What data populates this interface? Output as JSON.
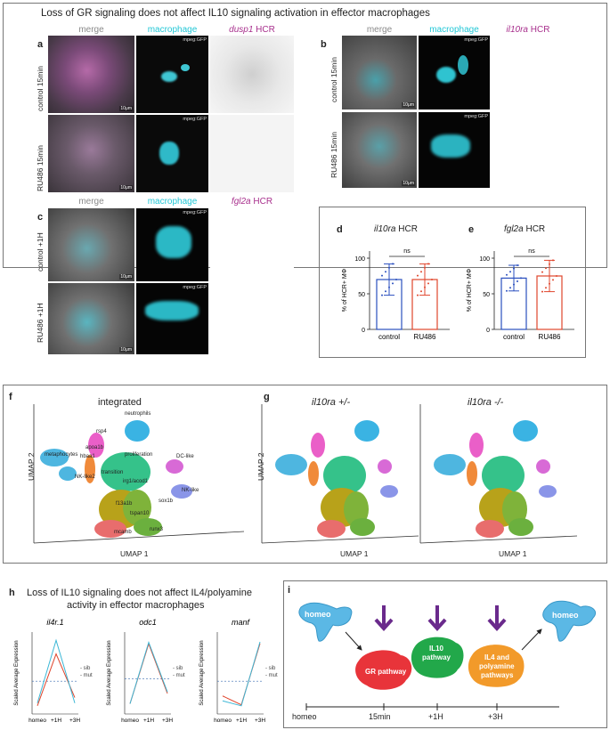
{
  "top": {
    "title": "Loss of GR signaling does not affect IL10 signaling activation in effector macrophages",
    "panel_a": {
      "label": "a",
      "headers": [
        "merge",
        "macrophage",
        "dusp1",
        "HCR"
      ],
      "rows": [
        "control 15min",
        "RU486 15min"
      ],
      "gfp": "mpeg:GFP",
      "scale": "10μm"
    },
    "panel_b": {
      "label": "b",
      "headers": [
        "merge",
        "macrophage",
        "il10ra",
        "HCR"
      ],
      "rows": [
        "control 15min",
        "RU486 15min"
      ],
      "gfp": "mpeg:GFP",
      "scale": "10μm"
    },
    "panel_c": {
      "label": "c",
      "headers": [
        "merge",
        "macrophage",
        "fgl2a",
        "HCR"
      ],
      "rows": [
        "control +1H",
        "RU486 +1H"
      ],
      "gfp": "mpeg:GFP",
      "scale": "10μm"
    },
    "panel_d": {
      "label": "d",
      "gene": "il10ra",
      "suffix": "HCR",
      "ns": "ns"
    },
    "panel_e": {
      "label": "e",
      "gene": "fgl2a",
      "suffix": "HCR",
      "ns": "ns"
    }
  },
  "chart_data": [
    {
      "id": "d",
      "type": "bar",
      "title": "il10ra HCR",
      "categories": [
        "control",
        "RU486"
      ],
      "values": [
        70,
        70
      ],
      "errors": [
        22,
        22
      ],
      "colors": [
        "#2a4fbf",
        "#e0452c"
      ],
      "ylabel": "% of HCR+ MΦ",
      "yticks": [
        0,
        50,
        100
      ],
      "ylim": [
        0,
        110
      ],
      "annotation": "ns"
    },
    {
      "id": "e",
      "type": "bar",
      "title": "fgl2a HCR",
      "categories": [
        "control",
        "RU486"
      ],
      "values": [
        72,
        75
      ],
      "errors": [
        18,
        22
      ],
      "colors": [
        "#2a4fbf",
        "#e0452c"
      ],
      "ylabel": "% of HCR+ MΦ",
      "yticks": [
        0,
        50,
        100
      ],
      "ylim": [
        0,
        110
      ],
      "annotation": "ns"
    },
    {
      "id": "h1",
      "type": "line",
      "title": "il4r.1",
      "x": [
        "homeo",
        "+1H",
        "+3H"
      ],
      "series": [
        {
          "name": "sib",
          "values": [
            -0.9,
            1.0,
            -0.6
          ],
          "color": "#e0452c"
        },
        {
          "name": "mut",
          "values": [
            -0.8,
            1.5,
            -0.8
          ],
          "color": "#3bb7d6"
        }
      ],
      "ylabel": "Scaled Average Expression",
      "ylim": [
        -1.2,
        1.8
      ]
    },
    {
      "id": "h2",
      "type": "line",
      "title": "odc1",
      "x": [
        "homeo",
        "+1H",
        "+3H"
      ],
      "series": [
        {
          "name": "sib",
          "values": [
            -0.85,
            1.2,
            -0.5
          ],
          "color": "#e0452c"
        },
        {
          "name": "mut",
          "values": [
            -0.85,
            1.25,
            -0.45
          ],
          "color": "#3bb7d6"
        }
      ],
      "ylabel": "Scaled Average Expression",
      "ylim": [
        -1.2,
        1.6
      ]
    },
    {
      "id": "h3",
      "type": "line",
      "title": "manf",
      "x": [
        "homeo",
        "+1H",
        "+3H"
      ],
      "series": [
        {
          "name": "sib",
          "values": [
            -0.45,
            -0.72,
            1.15
          ],
          "color": "#e0452c"
        },
        {
          "name": "mut",
          "values": [
            -0.6,
            -0.75,
            1.2
          ],
          "color": "#3bb7d6"
        }
      ],
      "ylabel": "Scaled Average Expression",
      "ylim": [
        -1.0,
        1.5
      ]
    }
  ],
  "umap": {
    "label_f": "f",
    "label_g": "g",
    "title_f": "integrated",
    "title_g1": "il10ra +/-",
    "title_g2": "il10ra -/-",
    "xlabel": "UMAP 1",
    "ylabel": "UMAP 2",
    "clusters": [
      "neutrophils",
      "rsp4",
      "metaphocytes",
      "apoa1b",
      "hbaa1",
      "proliferation",
      "DC-like",
      "NK-like2",
      "transition",
      "irg1/acod1",
      "NK-like",
      "f13a1b",
      "tspan10",
      "sox1b",
      "mcamb",
      "runx3"
    ]
  },
  "panel_h": {
    "label": "h",
    "title1": "Loss of IL10 signaling does not affect IL4/polyamine",
    "title2": "activity in effector macrophages"
  },
  "panel_i": {
    "label": "i",
    "homeo": "homeo",
    "gr": "GR pathway",
    "il10a": "IL10",
    "il10b": "pathway",
    "il4a": "IL4 and",
    "il4b": "polyamine",
    "il4c": "pathways",
    "timeline": [
      "homeo",
      "15min",
      "+1H",
      "+3H"
    ]
  }
}
